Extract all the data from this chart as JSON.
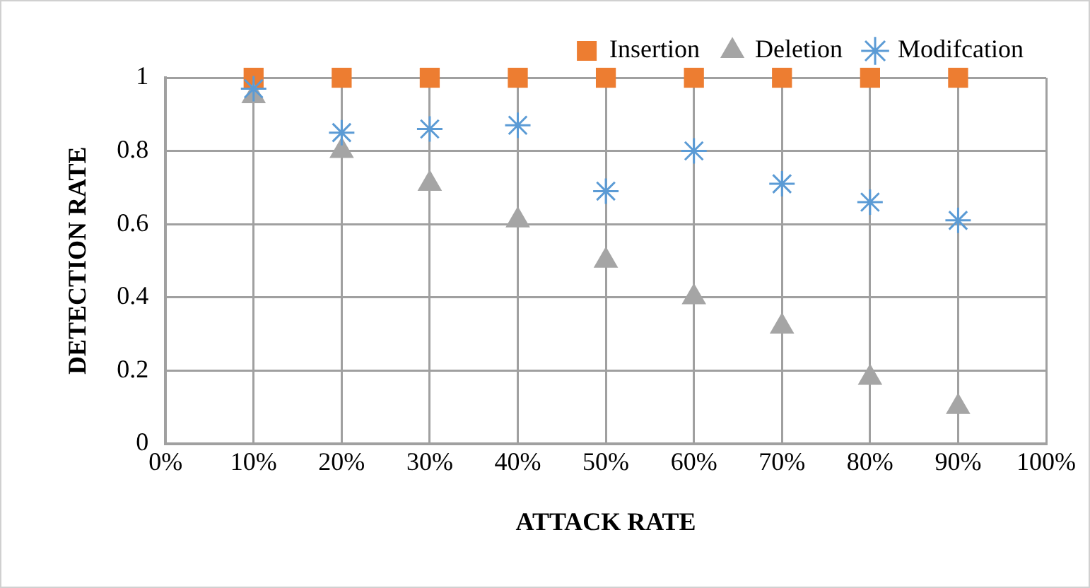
{
  "chart_data": {
    "type": "scatter",
    "xlabel": "ATTACK RATE",
    "ylabel": "DETECTION RATE",
    "x": [
      10,
      20,
      30,
      40,
      50,
      60,
      70,
      80,
      90
    ],
    "series": [
      {
        "name": "Insertion",
        "color": "#ed7d31",
        "marker": "square",
        "values": [
          1,
          1,
          1,
          1,
          1,
          1,
          1,
          1,
          1
        ]
      },
      {
        "name": "Deletion",
        "color": "#a5a5a5",
        "marker": "triangle",
        "values": [
          0.95,
          0.8,
          0.71,
          0.61,
          0.5,
          0.4,
          0.32,
          0.18,
          0.1
        ]
      },
      {
        "name": "Modifcation",
        "color": "#5b9bd5",
        "marker": "cross",
        "values": [
          0.97,
          0.85,
          0.86,
          0.87,
          0.69,
          0.8,
          0.71,
          0.66,
          0.61
        ]
      }
    ],
    "xlim": [
      0,
      100
    ],
    "xticks": [
      {
        "value": 0,
        "label": "0%"
      },
      {
        "value": 10,
        "label": "10%"
      },
      {
        "value": 20,
        "label": "20%"
      },
      {
        "value": 30,
        "label": "30%"
      },
      {
        "value": 40,
        "label": "40%"
      },
      {
        "value": 50,
        "label": "50%"
      },
      {
        "value": 60,
        "label": "60%"
      },
      {
        "value": 70,
        "label": "70%"
      },
      {
        "value": 80,
        "label": "80%"
      },
      {
        "value": 90,
        "label": "90%"
      },
      {
        "value": 100,
        "label": "100%"
      }
    ],
    "ylim": [
      0,
      1
    ],
    "yticks": [
      0,
      0.2,
      0.4,
      0.6,
      0.8,
      1
    ],
    "grid": true,
    "legend": "top right"
  }
}
